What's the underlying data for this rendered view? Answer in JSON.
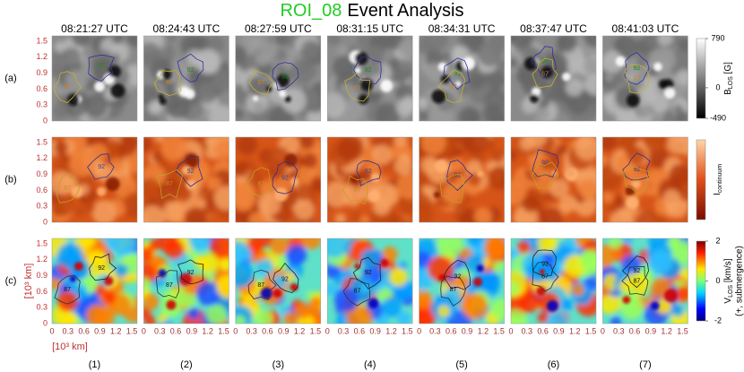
{
  "title": {
    "roi": "ROI_08",
    "rest": "Event Analysis"
  },
  "axes": {
    "xlim": [
      0,
      1.6
    ],
    "ylim": [
      0,
      1.6
    ],
    "xticks": [
      0,
      0.3,
      0.6,
      0.9,
      1.2,
      1.5
    ],
    "yticks": [
      0,
      0.3,
      0.6,
      0.9,
      1.2,
      1.5
    ],
    "y_label": "[10³ km]",
    "x_label": "[10³ km]"
  },
  "columns": [
    {
      "time": "08:21:27 UTC",
      "label": "(1)"
    },
    {
      "time": "08:24:43 UTC",
      "label": "(2)"
    },
    {
      "time": "08:27:59 UTC",
      "label": "(3)"
    },
    {
      "time": "08:31:15 UTC",
      "label": "(4)"
    },
    {
      "time": "08:34:31 UTC",
      "label": "(5)"
    },
    {
      "time": "08:37:47 UTC",
      "label": "(6)"
    },
    {
      "time": "08:41:03 UTC",
      "label": "(7)"
    }
  ],
  "rows": [
    {
      "label": "(a)",
      "colorbar": {
        "clim": [
          -490,
          790
        ],
        "ticks": [
          790,
          0,
          -490
        ],
        "title": {
          "main": "B",
          "sub": "LOS",
          "unit": " [G]"
        }
      }
    },
    {
      "label": "(b)",
      "colorbar": {
        "title": {
          "main": "I",
          "sub": "continuum"
        }
      }
    },
    {
      "label": "(c)",
      "colorbar": {
        "clim": [
          -2,
          2
        ],
        "ticks": [
          2,
          0,
          -2
        ],
        "title": {
          "main": "V",
          "sub": "LOS",
          "unit": " [km/s]"
        },
        "note": "(+, submergence)"
      }
    }
  ],
  "contour_labels": [
    "92",
    "87"
  ]
}
